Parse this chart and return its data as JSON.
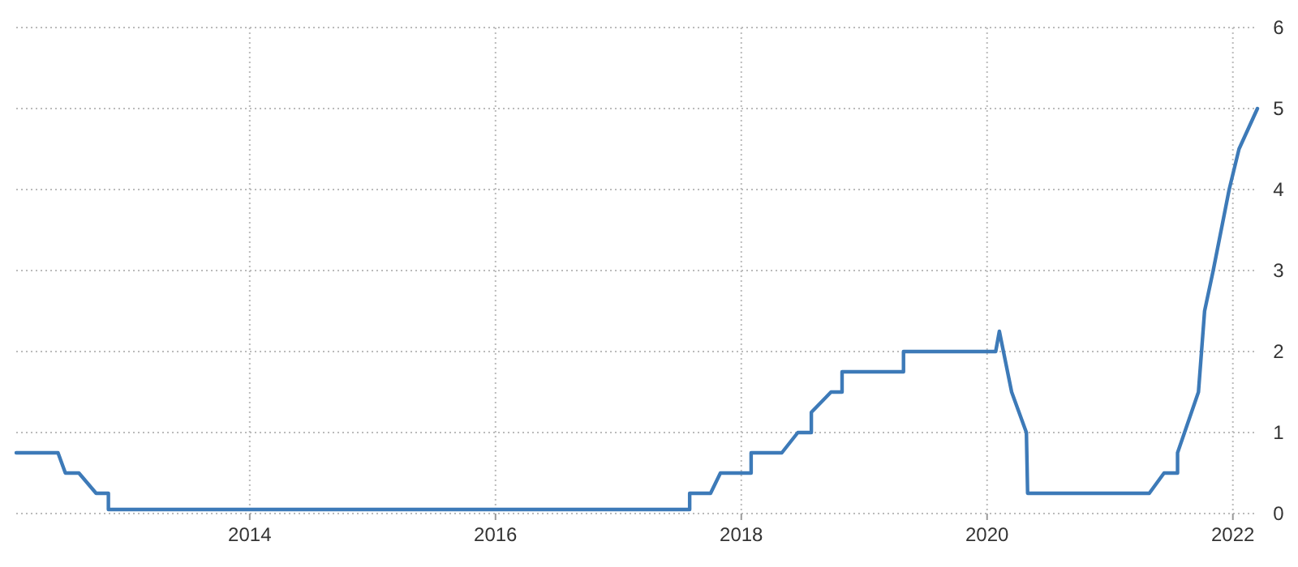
{
  "chart_data": {
    "type": "line",
    "x": [
      2012.1,
      2012.44,
      2012.5,
      2012.61,
      2012.75,
      2012.85,
      2012.85,
      2017.58,
      2017.58,
      2017.75,
      2017.83,
      2018.08,
      2018.08,
      2018.33,
      2018.46,
      2018.57,
      2018.57,
      2018.73,
      2018.82,
      2018.82,
      2019.32,
      2019.32,
      2020.07,
      2020.1,
      2020.2,
      2020.32,
      2020.33,
      2021.32,
      2021.44,
      2021.55,
      2021.55,
      2021.72,
      2021.77,
      2021.84,
      2021.97,
      2022.05,
      2022.2
    ],
    "series": [
      {
        "color": "#3d7ab8",
        "values": [
          0.75,
          0.75,
          0.5,
          0.5,
          0.25,
          0.25,
          0.05,
          0.05,
          0.25,
          0.25,
          0.5,
          0.5,
          0.75,
          0.75,
          1,
          1,
          1.25,
          1.5,
          1.5,
          1.75,
          1.75,
          2,
          2,
          2.25,
          1.5,
          1,
          0.25,
          0.25,
          0.5,
          0.5,
          0.75,
          1.5,
          2.5,
          3,
          4,
          4.5,
          5
        ]
      }
    ],
    "xlim": [
      2012.1,
      2022.2
    ],
    "xticks": [
      2014,
      2016,
      2018,
      2020,
      2022
    ],
    "ylim": [
      0,
      6
    ],
    "yticks": [
      0,
      1,
      2,
      3,
      4,
      5,
      6
    ],
    "grid": true,
    "line_style": "solid",
    "marker": "none"
  }
}
